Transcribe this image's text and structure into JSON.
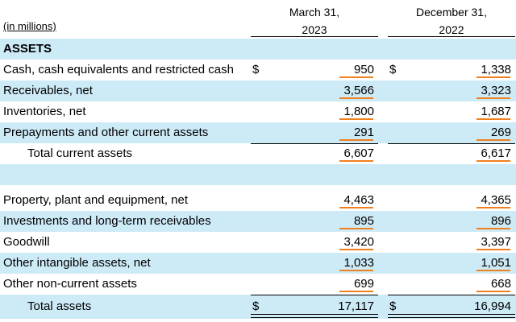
{
  "header": {
    "units": "(in millions)",
    "col1_line1": "March 31,",
    "col1_line2": "2023",
    "col2_line1": "December 31,",
    "col2_line2": "2022"
  },
  "section_title": "ASSETS",
  "currency_symbol": "$",
  "rows": [
    {
      "label": "Cash, cash equivalents and restricted cash",
      "v1": "950",
      "v2": "1,338"
    },
    {
      "label": "Receivables, net",
      "v1": "3,566",
      "v2": "3,323"
    },
    {
      "label": "Inventories, net",
      "v1": "1,800",
      "v2": "1,687"
    },
    {
      "label": "Prepayments and other current assets",
      "v1": "291",
      "v2": "269"
    },
    {
      "label": "Total current assets",
      "v1": "6,607",
      "v2": "6,617"
    },
    {
      "label": "Property, plant and equipment, net",
      "v1": "4,463",
      "v2": "4,365"
    },
    {
      "label": "Investments and long-term receivables",
      "v1": "895",
      "v2": "896"
    },
    {
      "label": "Goodwill",
      "v1": "3,420",
      "v2": "3,397"
    },
    {
      "label": "Other intangible assets, net",
      "v1": "1,033",
      "v2": "1,051"
    },
    {
      "label": "Other non-current assets",
      "v1": "699",
      "v2": "668"
    },
    {
      "label": "Total assets",
      "v1": "17,117",
      "v2": "16,994"
    }
  ],
  "colors": {
    "row_highlight": "#cdeaf7",
    "value_underline": "#f07f1e"
  }
}
